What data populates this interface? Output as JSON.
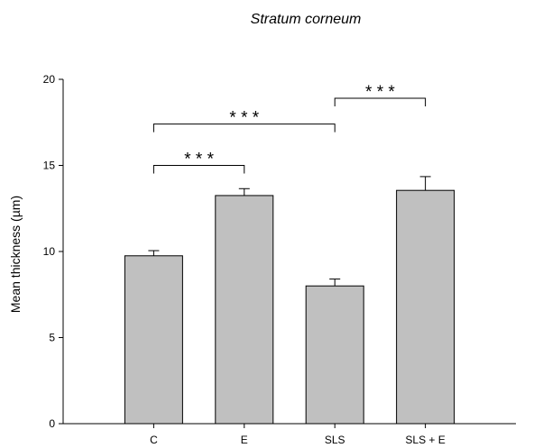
{
  "chart_data": {
    "type": "bar",
    "title": "Stratum corneum",
    "xlabel": "",
    "ylabel": "Mean thickness (µm)",
    "categories": [
      "C",
      "E",
      "SLS",
      "SLS + E"
    ],
    "values": [
      9.75,
      13.25,
      8.0,
      13.55
    ],
    "errors": [
      0.3,
      0.4,
      0.4,
      0.8
    ],
    "ylim": [
      0,
      20
    ],
    "xlim": [
      0,
      5
    ],
    "yticks": [
      0,
      5,
      10,
      15,
      20
    ],
    "bar_color": "#c0c0c0",
    "grid": false,
    "significance": [
      {
        "from": "C",
        "to": "E",
        "y": 15,
        "label": "* * *"
      },
      {
        "from": "C",
        "to": "SLS",
        "y": 17.4,
        "label": "* * *"
      },
      {
        "from": "SLS",
        "to": "SLS + E",
        "y": 18.9,
        "label": "* * *"
      }
    ]
  }
}
